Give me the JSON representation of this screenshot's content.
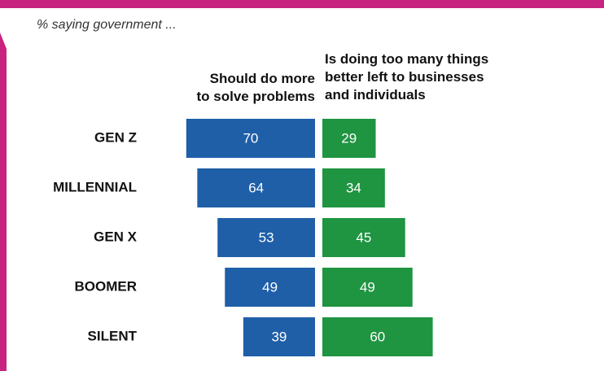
{
  "chart_data": {
    "type": "bar",
    "subtitle": "% saying government ...",
    "categories": [
      "GEN Z",
      "MILLENNIAL",
      "GEN X",
      "BOOMER",
      "SILENT"
    ],
    "series": [
      {
        "name": "Should do more\nto solve problems",
        "color": "#1f5fa8",
        "values": [
          70,
          64,
          53,
          49,
          39
        ]
      },
      {
        "name": "Is doing too many things\nbetter left to businesses\nand individuals",
        "color": "#1f9441",
        "values": [
          29,
          34,
          45,
          49,
          60
        ]
      }
    ]
  }
}
